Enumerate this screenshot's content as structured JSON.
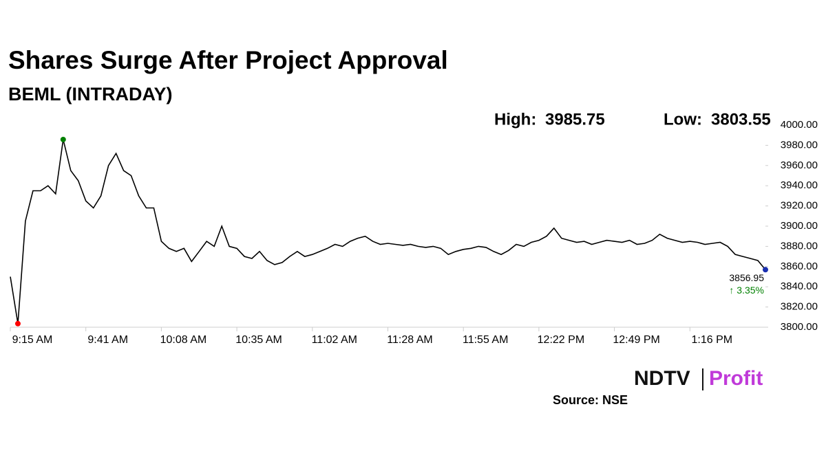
{
  "chart_data": {
    "type": "line",
    "title": "Shares Surge After Project Approval",
    "subtitle": "BEML (INTRADAY)",
    "high_label": "High:",
    "high": 3985.75,
    "low_label": "Low:",
    "low": 3803.55,
    "last": 3856.95,
    "change": {
      "value": 3.35,
      "label": "↑ 3.35%"
    },
    "high_index": 7,
    "low_index": 1,
    "categories": [
      "9:15 AM",
      null,
      null,
      null,
      null,
      null,
      null,
      null,
      null,
      null,
      "9:41 AM",
      null,
      null,
      null,
      null,
      null,
      null,
      null,
      null,
      null,
      "10:08 AM",
      null,
      null,
      null,
      null,
      null,
      null,
      null,
      null,
      null,
      "10:35 AM",
      null,
      null,
      null,
      null,
      null,
      null,
      null,
      null,
      null,
      "11:02 AM",
      null,
      null,
      null,
      null,
      null,
      null,
      null,
      null,
      null,
      "11:28 AM",
      null,
      null,
      null,
      null,
      null,
      null,
      null,
      null,
      null,
      "11:55 AM",
      null,
      null,
      null,
      null,
      null,
      null,
      null,
      null,
      null,
      "12:22 PM",
      null,
      null,
      null,
      null,
      null,
      null,
      null,
      null,
      null,
      "12:49 PM",
      null,
      null,
      null,
      null,
      null,
      null,
      null,
      null,
      null,
      "1:16 PM",
      null,
      null,
      null,
      null,
      null,
      null,
      null,
      null,
      null,
      null
    ],
    "series": [
      {
        "color": "#000000",
        "values": [
          3850,
          3803.55,
          3905,
          3935,
          3935,
          3940,
          3932,
          3985.75,
          3955,
          3945,
          3925,
          3918,
          3930,
          3960,
          3972,
          3955,
          3950,
          3930,
          3918,
          3918,
          3885,
          3878,
          3875,
          3878,
          3865,
          3875,
          3885,
          3880,
          3900,
          3880,
          3878,
          3870,
          3868,
          3875,
          3866,
          3862,
          3864,
          3870,
          3875,
          3870,
          3872,
          3875,
          3878,
          3882,
          3880,
          3885,
          3888,
          3890,
          3885,
          3882,
          3883,
          3882,
          3881,
          3882,
          3880,
          3879,
          3880,
          3878,
          3872,
          3875,
          3877,
          3878,
          3880,
          3879,
          3875,
          3872,
          3876,
          3882,
          3880,
          3884,
          3886,
          3890,
          3898,
          3888,
          3886,
          3884,
          3885,
          3882,
          3884,
          3886,
          3885,
          3884,
          3886,
          3882,
          3883,
          3886,
          3892,
          3888,
          3886,
          3884,
          3885,
          3884,
          3882,
          3883,
          3884,
          3880,
          3872,
          3870,
          3868,
          3866,
          3856.95
        ]
      }
    ],
    "ylim": [
      3800,
      4000
    ],
    "yticks": [
      {
        "value": 3800,
        "label": "3800.00"
      },
      {
        "value": 3820,
        "label": "3820.00"
      },
      {
        "value": 3840,
        "label": "3840.00"
      },
      {
        "value": 3860,
        "label": "3860.00"
      },
      {
        "value": 3880,
        "label": "3880.00"
      },
      {
        "value": 3900,
        "label": "3900.00"
      },
      {
        "value": 3920,
        "label": "3920.00"
      },
      {
        "value": 3940,
        "label": "3940.00"
      },
      {
        "value": 3960,
        "label": "3960.00"
      },
      {
        "value": 3980,
        "label": "3980.00"
      },
      {
        "value": 4000,
        "label": "4000.00"
      }
    ],
    "grid": false
  },
  "logo": {
    "brand": "NDTV",
    "product": "Profit"
  },
  "source": "Source: NSE"
}
